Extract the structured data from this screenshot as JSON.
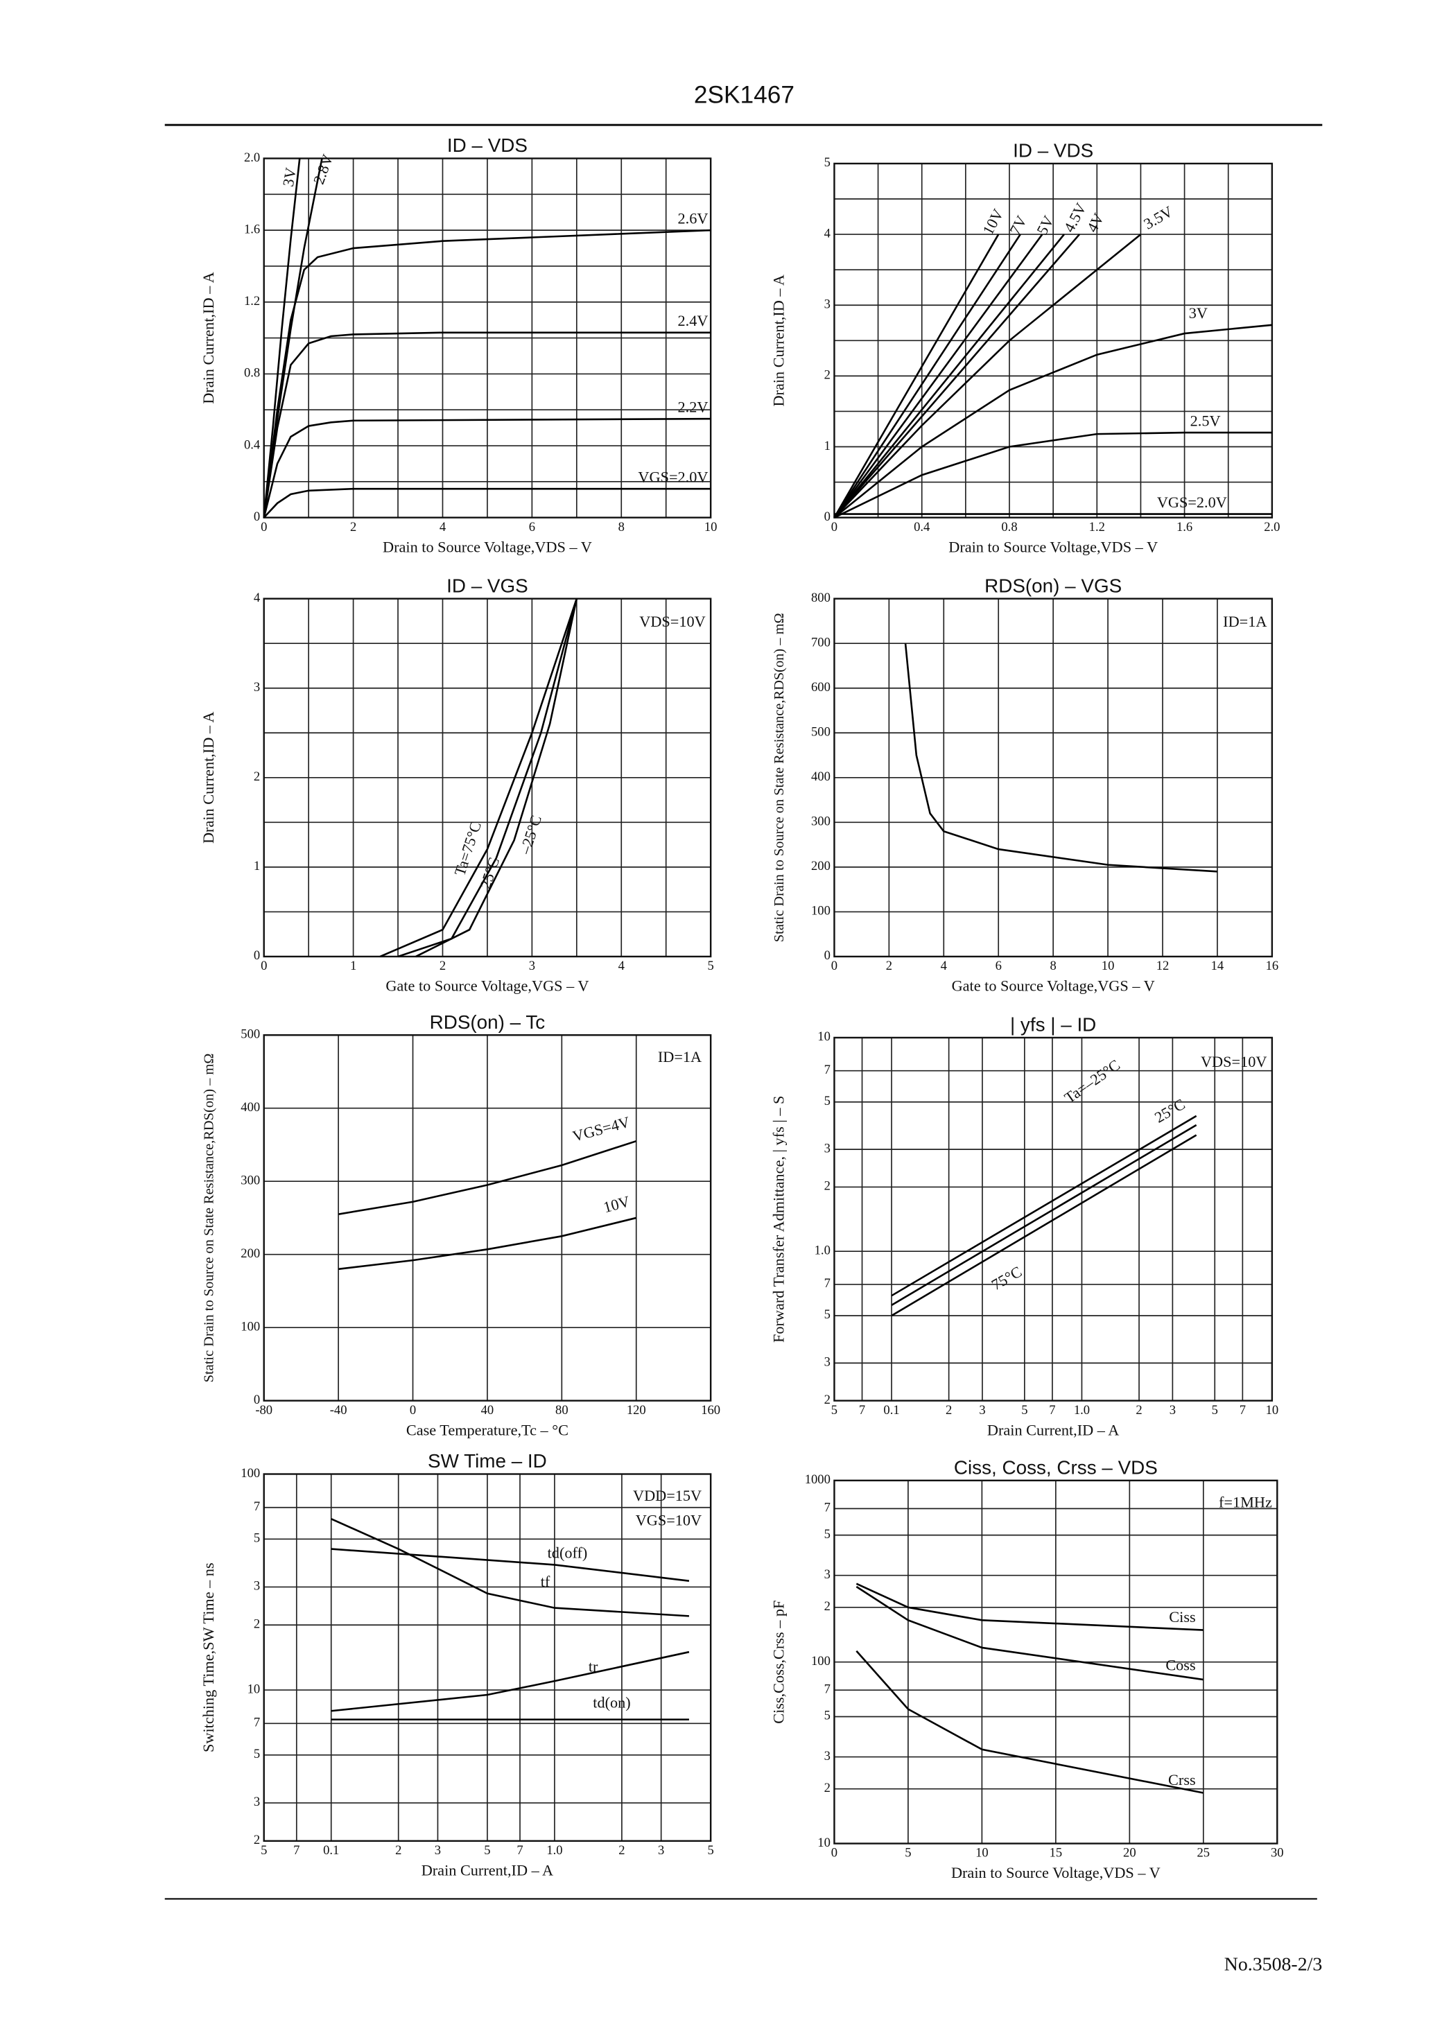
{
  "header": {
    "title": "2SK1467"
  },
  "footer": {
    "text": "No.3508-2/3"
  },
  "chart_data": [
    {
      "type": "line",
      "title": "ID  –  VDS",
      "xlabel": "Drain to Source Voltage,VDS – V",
      "ylabel": "Drain Current,ID – A",
      "xlim": [
        0,
        10
      ],
      "ylim": [
        0,
        2.0
      ],
      "xticks": [
        0,
        2,
        4,
        6,
        8,
        10
      ],
      "yticks": [
        0,
        0.4,
        0.8,
        1.2,
        1.6,
        {
          "value": 2.0,
          "label": "2.0"
        }
      ],
      "xminor": [
        1,
        3,
        5,
        7,
        9
      ],
      "yminor": [
        0.2,
        0.6,
        1.0,
        1.4,
        1.8
      ],
      "grid": true,
      "series": [
        {
          "name": "3V",
          "color": "#000",
          "x": [
            0,
            0.2,
            0.4,
            0.6,
            0.8
          ],
          "values": [
            0,
            0.5,
            1.05,
            1.55,
            2.0
          ]
        },
        {
          "name": "2.8V",
          "color": "#000",
          "x": [
            0,
            0.3,
            0.6,
            0.9,
            1.1,
            1.3
          ],
          "values": [
            0,
            0.55,
            1.05,
            1.5,
            1.75,
            2.0
          ]
        },
        {
          "name": "2.6V",
          "color": "#000",
          "x": [
            0,
            0.3,
            0.6,
            0.9,
            1.2,
            2,
            4,
            6,
            8,
            10
          ],
          "values": [
            0,
            0.6,
            1.1,
            1.38,
            1.45,
            1.5,
            1.54,
            1.56,
            1.58,
            1.6
          ]
        },
        {
          "name": "2.4V",
          "color": "#000",
          "x": [
            0,
            0.3,
            0.6,
            1,
            1.5,
            2,
            4,
            10
          ],
          "values": [
            0,
            0.5,
            0.85,
            0.97,
            1.01,
            1.02,
            1.03,
            1.03
          ]
        },
        {
          "name": "2.2V",
          "color": "#000",
          "x": [
            0,
            0.3,
            0.6,
            1,
            1.5,
            2,
            10
          ],
          "values": [
            0,
            0.3,
            0.45,
            0.51,
            0.53,
            0.54,
            0.55
          ]
        },
        {
          "name": "VGS=2.0V",
          "color": "#000",
          "x": [
            0,
            0.3,
            0.6,
            1,
            2,
            10
          ],
          "values": [
            0,
            0.08,
            0.13,
            0.15,
            0.16,
            0.16
          ]
        }
      ]
    },
    {
      "type": "line",
      "title": "ID  –  VDS",
      "xlabel": "Drain to Source Voltage,VDS – V",
      "ylabel": "Drain Current,ID – A",
      "xlim": [
        0,
        2.0
      ],
      "ylim": [
        0,
        5
      ],
      "xticks": [
        0,
        0.4,
        0.8,
        1.2,
        1.6,
        {
          "value": 2.0,
          "label": "2.0"
        }
      ],
      "yticks": [
        0,
        1,
        2,
        3,
        4,
        5
      ],
      "xminor": [
        0.2,
        0.6,
        1.0,
        1.4,
        1.8
      ],
      "yminor": [
        0.5,
        1.5,
        2.5,
        3.5,
        4.5
      ],
      "grid": true,
      "series": [
        {
          "name": "10V",
          "color": "#000",
          "x": [
            0,
            0.75
          ],
          "values": [
            0,
            4
          ]
        },
        {
          "name": "7V",
          "color": "#000",
          "x": [
            0,
            0.85
          ],
          "values": [
            0,
            4
          ]
        },
        {
          "name": "5V",
          "color": "#000",
          "x": [
            0,
            0.95
          ],
          "values": [
            0,
            4
          ]
        },
        {
          "name": "4.5V",
          "color": "#000",
          "x": [
            0,
            1.05
          ],
          "values": [
            0,
            4
          ]
        },
        {
          "name": "4V",
          "color": "#000",
          "x": [
            0,
            1.12
          ],
          "values": [
            0,
            4
          ]
        },
        {
          "name": "3.5V",
          "color": "#000",
          "x": [
            0,
            0.4,
            0.8,
            1.2,
            1.4
          ],
          "values": [
            0,
            1.3,
            2.5,
            3.5,
            4.0
          ]
        },
        {
          "name": "3V",
          "color": "#000",
          "x": [
            0,
            0.4,
            0.8,
            1.2,
            1.6,
            2.0
          ],
          "values": [
            0,
            1.0,
            1.8,
            2.3,
            2.6,
            2.72
          ]
        },
        {
          "name": "2.5V",
          "color": "#000",
          "x": [
            0,
            0.4,
            0.8,
            1.2,
            1.6,
            2.0
          ],
          "values": [
            0,
            0.6,
            1.0,
            1.18,
            1.2,
            1.2
          ]
        },
        {
          "name": "VGS=2.0V",
          "color": "#000",
          "x": [
            0,
            2.0
          ],
          "values": [
            0.05,
            0.05
          ]
        }
      ]
    },
    {
      "type": "line",
      "title": "ID  –  VGS",
      "xlabel": "Gate to Source Voltage,VGS – V",
      "ylabel": "Drain Current,ID – A",
      "xlim": [
        0,
        5
      ],
      "ylim": [
        0,
        4
      ],
      "xticks": [
        0,
        1,
        2,
        3,
        4,
        5
      ],
      "yticks": [
        0,
        1,
        2,
        3,
        4
      ],
      "xminor": [
        0.5,
        1.5,
        2.5,
        3.5,
        4.5
      ],
      "yminor": [
        0.5,
        1.5,
        2.5,
        3.5
      ],
      "grid": true,
      "annotations": [
        "VDS=10V"
      ],
      "series": [
        {
          "name": "Ta=75°C",
          "color": "#000",
          "x": [
            1.3,
            2,
            2.5,
            3,
            3.5
          ],
          "values": [
            0,
            0.3,
            1.2,
            2.5,
            4
          ]
        },
        {
          "name": "25°C",
          "color": "#000",
          "x": [
            1.5,
            2.1,
            2.6,
            3.1,
            3.5
          ],
          "values": [
            0,
            0.2,
            1.1,
            2.5,
            4
          ]
        },
        {
          "name": "–25°C",
          "color": "#000",
          "x": [
            1.7,
            2.3,
            2.8,
            3.2,
            3.5
          ],
          "values": [
            0,
            0.3,
            1.3,
            2.6,
            4
          ]
        }
      ]
    },
    {
      "type": "line",
      "title": "RDS(on)  –  VGS",
      "xlabel": "Gate to Source Voltage,VGS – V",
      "ylabel": "Static Drain to Source on State Resistance,RDS(on) – mΩ",
      "xlim": [
        0,
        16
      ],
      "ylim": [
        0,
        800
      ],
      "xticks": [
        0,
        2,
        4,
        6,
        8,
        10,
        12,
        14,
        16
      ],
      "yticks": [
        0,
        100,
        200,
        300,
        400,
        500,
        600,
        700,
        800
      ],
      "grid": true,
      "annotations": [
        "ID=1A"
      ],
      "series": [
        {
          "color": "#000",
          "x": [
            2.6,
            3,
            3.5,
            4,
            6,
            10,
            14
          ],
          "values": [
            700,
            450,
            320,
            280,
            240,
            205,
            190
          ]
        }
      ]
    },
    {
      "type": "line",
      "title": "RDS(on)  –  Tc",
      "xlabel": "Case Temperature,Tc – °C",
      "ylabel": "Static Drain to Source on State Resistance,RDS(on) – mΩ",
      "xlim": [
        -80,
        160
      ],
      "ylim": [
        0,
        500
      ],
      "xticks": [
        -80,
        -40,
        0,
        40,
        80,
        120,
        160
      ],
      "yticks": [
        0,
        100,
        200,
        300,
        400,
        500
      ],
      "grid": true,
      "annotations": [
        "ID=1A"
      ],
      "series": [
        {
          "name": "VGS=4V",
          "color": "#000",
          "x": [
            -40,
            0,
            40,
            80,
            120
          ],
          "values": [
            255,
            272,
            295,
            322,
            355
          ]
        },
        {
          "name": "10V",
          "color": "#000",
          "x": [
            -40,
            0,
            40,
            80,
            120
          ],
          "values": [
            180,
            192,
            207,
            225,
            250
          ]
        }
      ]
    },
    {
      "type": "line",
      "title": "| yfs |  –  ID",
      "xlabel": "Drain Current,ID – A",
      "ylabel": "Forward Transfer Admittance, | yfs | – S",
      "xscale": "log",
      "yscale": "log",
      "xlim": [
        0.05,
        10
      ],
      "ylim": [
        0.2,
        10
      ],
      "xticks": [
        {
          "value": 0.05,
          "label": "5"
        },
        {
          "value": 0.07,
          "label": "7"
        },
        0.1,
        {
          "value": 0.2,
          "label": "2"
        },
        {
          "value": 0.3,
          "label": "3"
        },
        {
          "value": 0.5,
          "label": "5"
        },
        {
          "value": 0.7,
          "label": "7"
        },
        {
          "value": 1,
          "label": "1.0"
        },
        {
          "value": 2,
          "label": "2"
        },
        {
          "value": 3,
          "label": "3"
        },
        {
          "value": 5,
          "label": "5"
        },
        {
          "value": 7,
          "label": "7"
        },
        10
      ],
      "yticks": [
        10,
        {
          "value": 7,
          "label": "7"
        },
        {
          "value": 5,
          "label": "5"
        },
        {
          "value": 3,
          "label": "3"
        },
        {
          "value": 2,
          "label": "2"
        },
        {
          "value": 1,
          "label": "1.0"
        },
        {
          "value": 0.7,
          "label": "7"
        },
        {
          "value": 0.5,
          "label": "5"
        },
        {
          "value": 0.3,
          "label": "3"
        },
        {
          "value": 0.2,
          "label": "2"
        }
      ],
      "grid": true,
      "annotations": [
        "VDS=10V"
      ],
      "series": [
        {
          "name": "Ta=–25°C",
          "color": "#000",
          "x": [
            0.1,
            4
          ],
          "values": [
            0.62,
            4.3
          ]
        },
        {
          "name": "25°C",
          "color": "#000",
          "x": [
            0.1,
            4
          ],
          "values": [
            0.56,
            3.9
          ]
        },
        {
          "name": "75°C",
          "color": "#000",
          "x": [
            0.1,
            4
          ],
          "values": [
            0.5,
            3.5
          ]
        }
      ]
    },
    {
      "type": "line",
      "title": "SW Time  –  ID",
      "xlabel": "Drain Current,ID – A",
      "ylabel": "Switching Time,SW Time – ns",
      "xscale": "log",
      "yscale": "log",
      "xlim": [
        0.05,
        5
      ],
      "ylim": [
        2,
        100
      ],
      "xticks": [
        {
          "value": 0.05,
          "label": "5"
        },
        {
          "value": 0.07,
          "label": "7"
        },
        0.1,
        {
          "value": 0.2,
          "label": "2"
        },
        {
          "value": 0.3,
          "label": "3"
        },
        {
          "value": 0.5,
          "label": "5"
        },
        {
          "value": 0.7,
          "label": "7"
        },
        {
          "value": 1,
          "label": "1.0"
        },
        {
          "value": 2,
          "label": "2"
        },
        {
          "value": 3,
          "label": "3"
        },
        {
          "value": 5,
          "label": "5"
        }
      ],
      "yticks": [
        100,
        {
          "value": 70,
          "label": "7"
        },
        {
          "value": 50,
          "label": "5"
        },
        {
          "value": 30,
          "label": "3"
        },
        {
          "value": 20,
          "label": "2"
        },
        10,
        {
          "value": 7,
          "label": "7"
        },
        {
          "value": 5,
          "label": "5"
        },
        {
          "value": 3,
          "label": "3"
        },
        {
          "value": 2,
          "label": "2"
        }
      ],
      "grid": true,
      "annotations": [
        "VDD=15V",
        "VGS=10V"
      ],
      "series": [
        {
          "name": "td(off)",
          "color": "#000",
          "x": [
            0.1,
            1,
            4
          ],
          "values": [
            45,
            38,
            32
          ]
        },
        {
          "name": "tf",
          "color": "#000",
          "x": [
            0.1,
            0.2,
            0.5,
            1,
            4
          ],
          "values": [
            62,
            45,
            28,
            24,
            22
          ]
        },
        {
          "name": "tr",
          "color": "#000",
          "x": [
            0.1,
            0.5,
            1,
            4
          ],
          "values": [
            8,
            9.5,
            11,
            15
          ]
        },
        {
          "name": "td(on)",
          "color": "#000",
          "x": [
            0.1,
            4
          ],
          "values": [
            7.3,
            7.3
          ]
        }
      ]
    },
    {
      "type": "line",
      "title": "Ciss, Coss, Crss  –  VDS",
      "xlabel": "Drain to Source Voltage,VDS – V",
      "ylabel": "Ciss,Coss,Crss – pF",
      "yscale": "log",
      "xlim": [
        0,
        30
      ],
      "ylim": [
        10,
        1000
      ],
      "xticks": [
        0,
        5,
        10,
        15,
        20,
        25,
        30
      ],
      "yticks": [
        1000,
        {
          "value": 700,
          "label": "7"
        },
        {
          "value": 500,
          "label": "5"
        },
        {
          "value": 300,
          "label": "3"
        },
        {
          "value": 200,
          "label": "2"
        },
        100,
        {
          "value": 70,
          "label": "7"
        },
        {
          "value": 50,
          "label": "5"
        },
        {
          "value": 30,
          "label": "3"
        },
        {
          "value": 20,
          "label": "2"
        },
        10
      ],
      "grid": true,
      "annotations": [
        "f=1MHz"
      ],
      "series": [
        {
          "name": "Ciss",
          "color": "#000",
          "x": [
            1.5,
            5,
            10,
            25
          ],
          "values": [
            270,
            200,
            170,
            150
          ]
        },
        {
          "name": "Coss",
          "color": "#000",
          "x": [
            1.5,
            5,
            10,
            25
          ],
          "values": [
            260,
            170,
            120,
            80
          ]
        },
        {
          "name": "Crss",
          "color": "#000",
          "x": [
            1.5,
            5,
            10,
            25
          ],
          "values": [
            115,
            55,
            33,
            19
          ]
        }
      ]
    }
  ]
}
